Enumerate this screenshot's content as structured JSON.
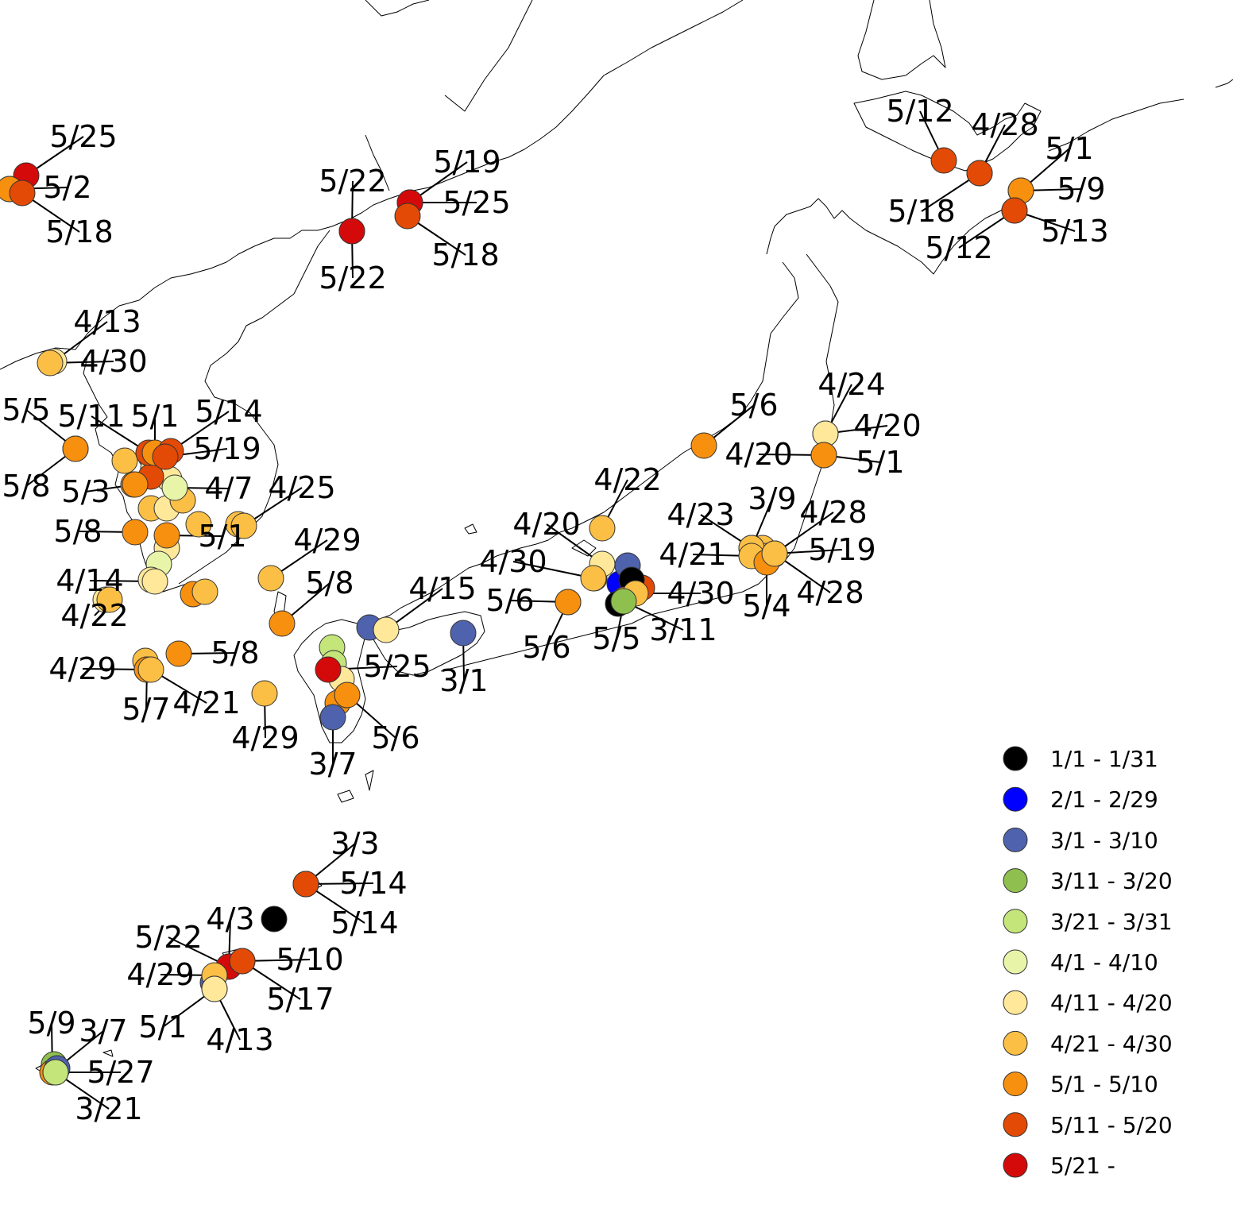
{
  "legend": {
    "items": [
      {
        "label": "1/1 - 1/31",
        "color": "#000000"
      },
      {
        "label": "2/1 - 2/29",
        "color": "#0000FF"
      },
      {
        "label": "3/1 - 3/10",
        "color": "#4F62AD"
      },
      {
        "label": "3/11 - 3/20",
        "color": "#8FC04F"
      },
      {
        "label": "3/21 - 3/31",
        "color": "#C3E57A"
      },
      {
        "label": "4/1 - 4/10",
        "color": "#E8F5A9"
      },
      {
        "label": "4/11 - 4/20",
        "color": "#FFE89A"
      },
      {
        "label": "4/21 - 4/30",
        "color": "#FBBF45"
      },
      {
        "label": "5/1 - 5/10",
        "color": "#F7900F"
      },
      {
        "label": "5/11 - 5/20",
        "color": "#E24A05"
      },
      {
        "label": "5/21 -",
        "color": "#D40A0A"
      }
    ]
  },
  "markers": [
    {
      "date": "5/25"
    },
    {
      "date": "5/2"
    },
    {
      "date": "5/18"
    },
    {
      "date": "5/22"
    },
    {
      "date": "5/22"
    },
    {
      "date": "5/19"
    },
    {
      "date": "5/25"
    },
    {
      "date": "5/18"
    },
    {
      "date": "4/13"
    },
    {
      "date": "4/30"
    },
    {
      "date": "5/5"
    },
    {
      "date": "5/8"
    },
    {
      "date": "5/11"
    },
    {
      "date": "5/1"
    },
    {
      "date": "5/14"
    },
    {
      "date": "5/19"
    },
    {
      "date": "5/3"
    },
    {
      "date": "4/7"
    },
    {
      "date": "4/25"
    },
    {
      "date": "5/8"
    },
    {
      "date": "5/1"
    },
    {
      "date": "4/29"
    },
    {
      "date": "4/14"
    },
    {
      "date": "4/22"
    },
    {
      "date": "5/8"
    },
    {
      "date": "5/8"
    },
    {
      "date": "4/29"
    },
    {
      "date": "5/7"
    },
    {
      "date": "4/21"
    },
    {
      "date": "4/29"
    },
    {
      "date": "4/15"
    },
    {
      "date": "5/25"
    },
    {
      "date": "3/1"
    },
    {
      "date": "5/6"
    },
    {
      "date": "3/7"
    },
    {
      "date": "4/22"
    },
    {
      "date": "4/20"
    },
    {
      "date": "4/30"
    },
    {
      "date": "5/6"
    },
    {
      "date": "5/6"
    },
    {
      "date": "5/5"
    },
    {
      "date": "4/30"
    },
    {
      "date": "3/11"
    },
    {
      "date": "5/6"
    },
    {
      "date": "4/24"
    },
    {
      "date": "4/20"
    },
    {
      "date": "4/20"
    },
    {
      "date": "5/1"
    },
    {
      "date": "3/9"
    },
    {
      "date": "4/23"
    },
    {
      "date": "4/28"
    },
    {
      "date": "4/21"
    },
    {
      "date": "5/19"
    },
    {
      "date": "5/4"
    },
    {
      "date": "4/28"
    },
    {
      "date": "5/12"
    },
    {
      "date": "4/28"
    },
    {
      "date": "5/18"
    },
    {
      "date": "5/1"
    },
    {
      "date": "5/9"
    },
    {
      "date": "5/13"
    },
    {
      "date": "5/12"
    },
    {
      "date": "3/3"
    },
    {
      "date": "5/14"
    },
    {
      "date": "5/14"
    },
    {
      "date": "4/3"
    },
    {
      "date": "5/22"
    },
    {
      "date": "5/10"
    },
    {
      "date": "4/29"
    },
    {
      "date": "5/17"
    },
    {
      "date": "5/1"
    },
    {
      "date": "4/13"
    },
    {
      "date": "5/9"
    },
    {
      "date": "3/7"
    },
    {
      "date": "5/27"
    },
    {
      "date": "3/21"
    }
  ]
}
